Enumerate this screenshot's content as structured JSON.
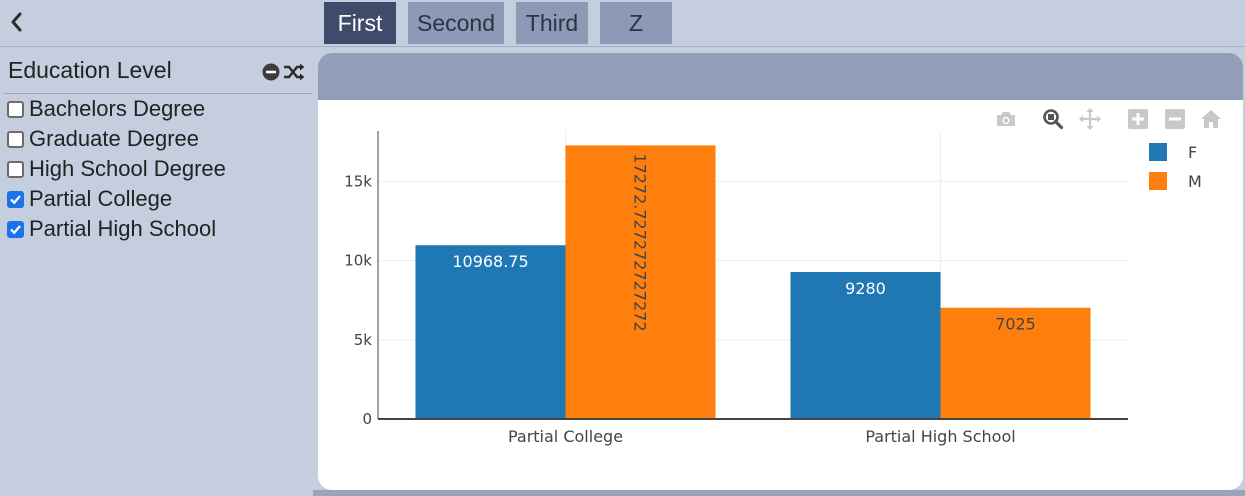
{
  "tabs": [
    {
      "label": "First",
      "active": true
    },
    {
      "label": "Second",
      "active": false
    },
    {
      "label": "Third",
      "active": false
    },
    {
      "label": "Z",
      "active": false
    }
  ],
  "sidebar": {
    "title": "Education Level",
    "items": [
      {
        "label": "Bachelors Degree",
        "checked": false
      },
      {
        "label": "Graduate Degree",
        "checked": false
      },
      {
        "label": "High School Degree",
        "checked": false
      },
      {
        "label": "Partial College",
        "checked": true
      },
      {
        "label": "Partial High School",
        "checked": true
      }
    ]
  },
  "modebar_icons": [
    "camera-icon",
    "zoom-icon",
    "pan-icon",
    "zoom-in-icon",
    "zoom-out-icon",
    "home-icon"
  ],
  "colors": {
    "F": "#1f77b4",
    "M": "#ff7f0e"
  },
  "chart_data": {
    "type": "bar",
    "categories": [
      "Partial College",
      "Partial High School"
    ],
    "series": [
      {
        "name": "F",
        "values": [
          10968.75,
          9280
        ],
        "labels": [
          "10968.75",
          "9280"
        ]
      },
      {
        "name": "M",
        "values": [
          17272.727272727272,
          7025
        ],
        "labels": [
          "17272.727272727272",
          "7025"
        ]
      }
    ],
    "yticks": [
      0,
      5000,
      10000,
      15000
    ],
    "ytick_labels": [
      "0",
      "5k",
      "10k",
      "15k"
    ],
    "ylim": [
      0,
      18180
    ],
    "legend_position": "top-right",
    "grid": true
  }
}
